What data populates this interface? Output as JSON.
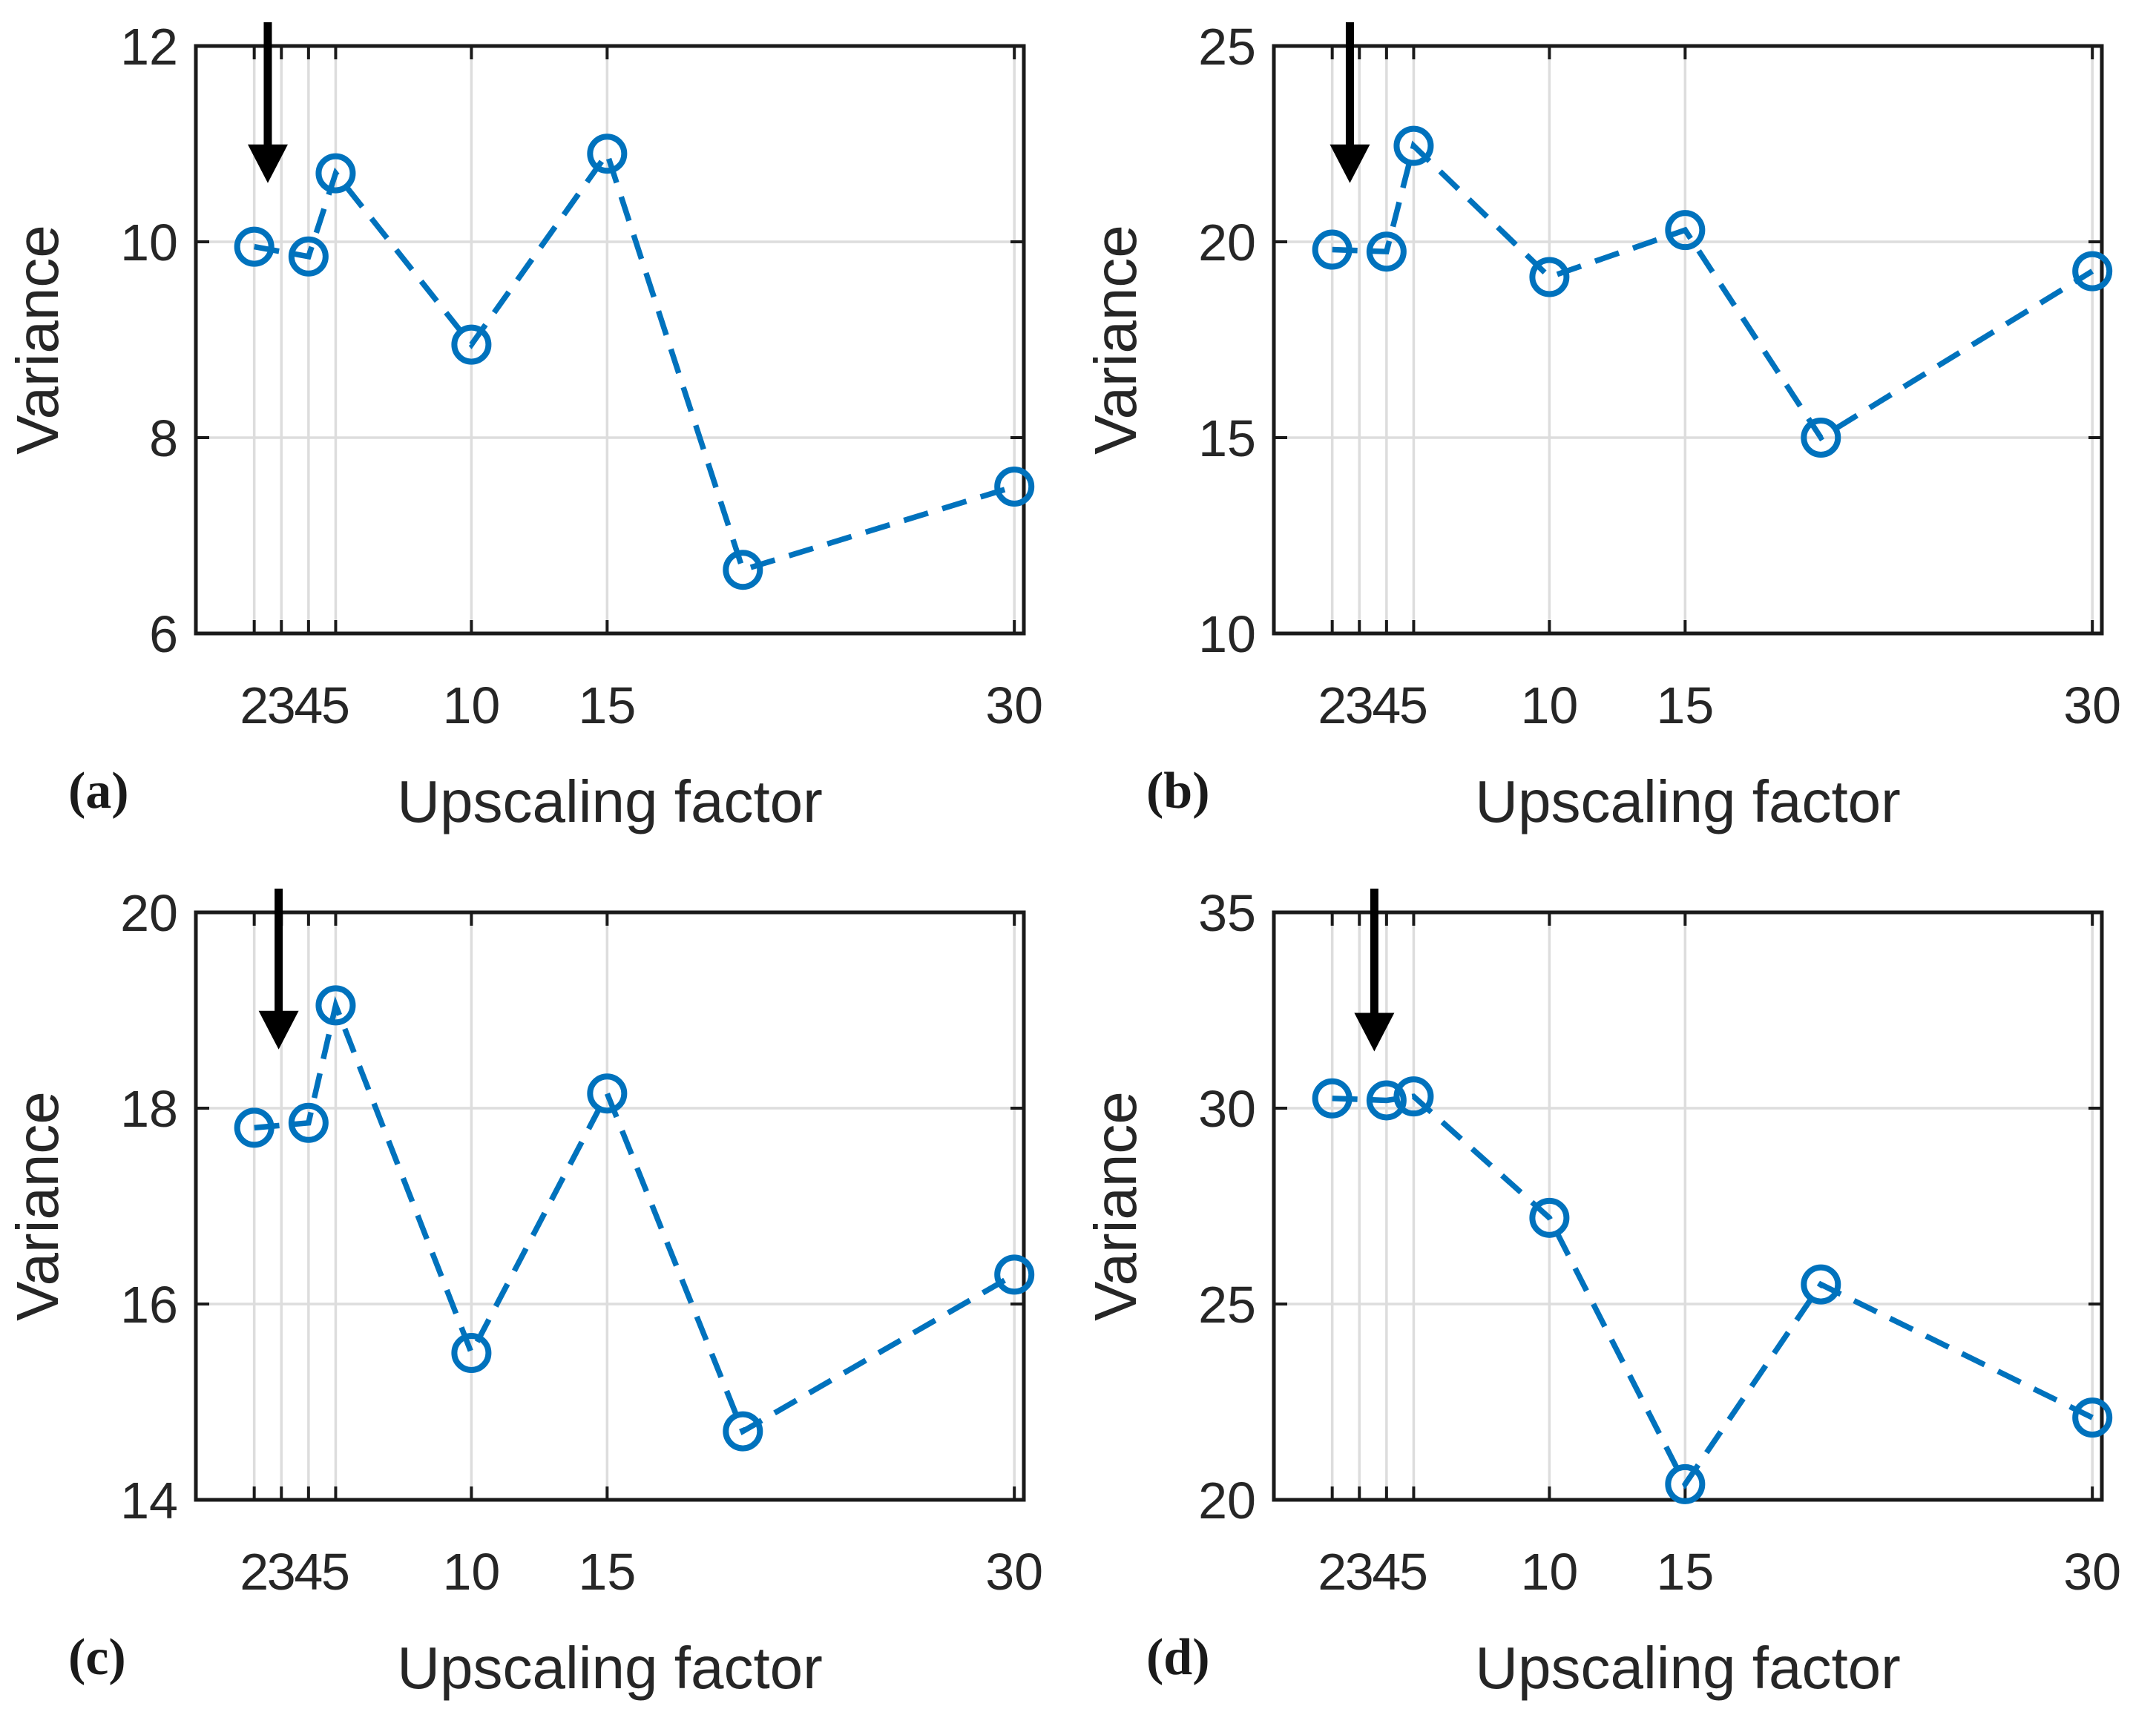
{
  "figure": {
    "background": "#FFFFFF",
    "colors": {
      "line": "#0072BD",
      "grid": "#DDDDDD",
      "axis": "#1A1A1A",
      "text": "#262626",
      "arrow": "#000000"
    }
  },
  "chart_data": [
    {
      "panel_label": "(a)",
      "type": "line",
      "title": "",
      "xlabel": "Upscaling factor",
      "ylabel": "Variance",
      "x": [
        2,
        4,
        5,
        10,
        15,
        20,
        30
      ],
      "values": [
        9.95,
        9.85,
        10.7,
        8.95,
        10.9,
        6.65,
        7.5
      ],
      "xticks": [
        2,
        3,
        4,
        5,
        10,
        15,
        30
      ],
      "yticks": [
        6,
        8,
        10,
        12
      ],
      "xlim": [
        -0.15,
        30.35
      ],
      "ylim": [
        6,
        12
      ],
      "grid": true,
      "legend": null,
      "line_style": "dashed",
      "marker": "circle",
      "annotation_arrow": {
        "x": 2.5,
        "tip_y": 10.6
      }
    },
    {
      "panel_label": "(b)",
      "type": "line",
      "title": "",
      "xlabel": "Upscaling factor",
      "ylabel": "Variance",
      "x": [
        2,
        4,
        5,
        10,
        15,
        20,
        30
      ],
      "values": [
        19.8,
        19.75,
        22.45,
        19.1,
        20.3,
        15.0,
        19.25
      ],
      "xticks": [
        2,
        3,
        4,
        5,
        10,
        15,
        30
      ],
      "yticks": [
        10,
        15,
        20,
        25
      ],
      "xlim": [
        -0.15,
        30.35
      ],
      "ylim": [
        10,
        25
      ],
      "grid": true,
      "legend": null,
      "line_style": "dashed",
      "marker": "circle",
      "annotation_arrow": {
        "x": 2.65,
        "tip_y": 21.5
      }
    },
    {
      "panel_label": "(c)",
      "type": "line",
      "title": "",
      "xlabel": "Upscaling factor",
      "ylabel": "Variance",
      "x": [
        2,
        4,
        5,
        10,
        15,
        20,
        30
      ],
      "values": [
        17.8,
        17.85,
        19.05,
        15.5,
        18.15,
        14.7,
        16.3
      ],
      "xticks": [
        2,
        3,
        4,
        5,
        10,
        15,
        30
      ],
      "yticks": [
        14,
        16,
        18,
        20
      ],
      "xlim": [
        -0.15,
        30.35
      ],
      "ylim": [
        14,
        20
      ],
      "grid": true,
      "legend": null,
      "line_style": "dashed",
      "marker": "circle",
      "annotation_arrow": {
        "x": 2.9,
        "tip_y": 18.6
      }
    },
    {
      "panel_label": "(d)",
      "type": "line",
      "title": "",
      "xlabel": "Upscaling factor",
      "ylabel": "Variance",
      "x": [
        2,
        4,
        5,
        10,
        15,
        20,
        30
      ],
      "values": [
        30.25,
        30.2,
        30.3,
        27.2,
        20.4,
        25.5,
        22.1
      ],
      "xticks": [
        2,
        3,
        4,
        5,
        10,
        15,
        30
      ],
      "yticks": [
        20,
        25,
        30,
        35
      ],
      "xlim": [
        -0.15,
        30.35
      ],
      "ylim": [
        20,
        35
      ],
      "grid": true,
      "legend": null,
      "line_style": "dashed",
      "marker": "circle",
      "annotation_arrow": {
        "x": 3.55,
        "tip_y": 31.45
      }
    }
  ]
}
